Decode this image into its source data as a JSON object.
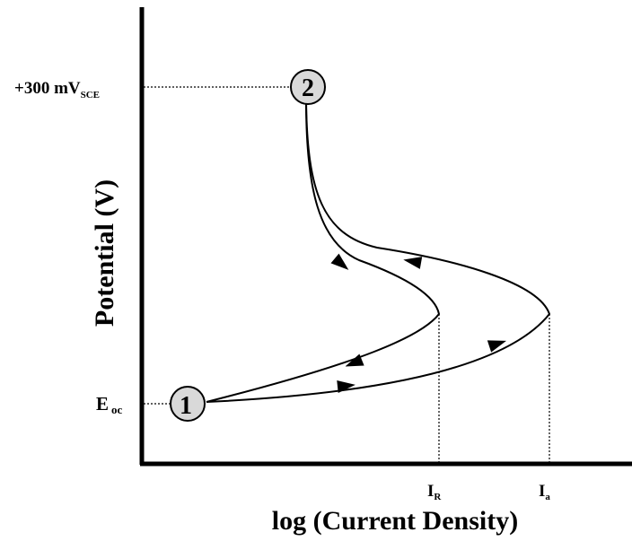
{
  "axes": {
    "y_label": "Potential (V)",
    "x_label": "log (Current Density)"
  },
  "y_ticks": [
    {
      "main": "+300 mV",
      "sub": "SCE"
    },
    {
      "main": "E",
      "sub": "oc"
    }
  ],
  "x_ticks": [
    {
      "main": "I",
      "sub": "R"
    },
    {
      "main": "I",
      "sub": "a"
    }
  ],
  "points": {
    "start": "1",
    "vertex": "2"
  },
  "colors": {
    "line": "#000000",
    "point_fill": "#d9d9d9"
  }
}
